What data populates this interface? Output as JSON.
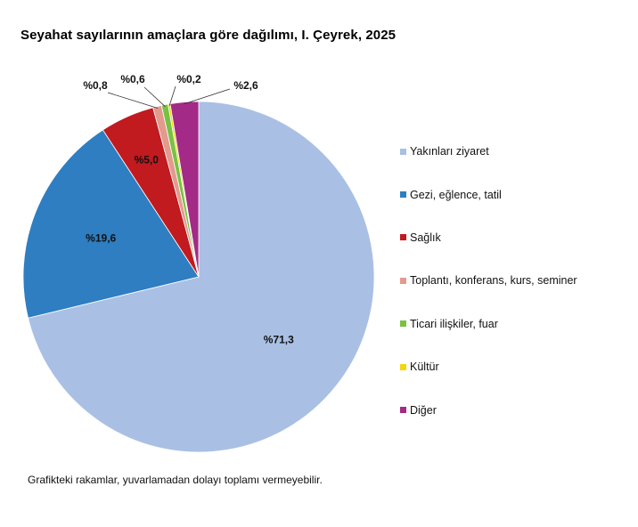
{
  "chart_data": {
    "type": "pie",
    "title": "Seyahat sayılarının amaçlara göre dağılımı, I. Çeyrek, 2025",
    "categories": [
      "Yakınları ziyaret",
      "Gezi, eğlence, tatil",
      "Sağlık",
      "Toplantı, konferans, kurs, seminer",
      "Ticari ilişkiler, fuar",
      "Kültür",
      "Diğer"
    ],
    "values": [
      71.3,
      19.6,
      5.0,
      0.8,
      0.6,
      0.2,
      2.6
    ],
    "data_labels": [
      "%71,3",
      "%19,6",
      "%5,0",
      "%0,8",
      "%0,6",
      "%0,2",
      "%2,6"
    ],
    "colors": [
      "#a9c0e4",
      "#2e7ec1",
      "#c11a1f",
      "#e39a8e",
      "#79c144",
      "#f2d70c",
      "#a32a86"
    ],
    "legend_position": "right",
    "footnote": "Grafikteki rakamlar, yuvarlamadan dolayı toplamı vermeyebilir."
  }
}
